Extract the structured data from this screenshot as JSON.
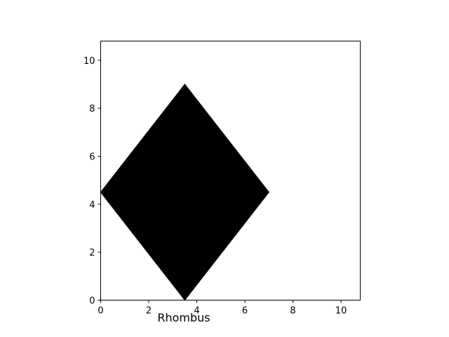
{
  "chart_data": {
    "type": "polygon",
    "title": "",
    "xlabel": "Rhombus",
    "ylabel": "",
    "xlim": [
      0,
      10.8
    ],
    "ylim": [
      0,
      10.8
    ],
    "grid": false,
    "legend": "none",
    "xticks": [
      0,
      2,
      4,
      6,
      8,
      10
    ],
    "yticks": [
      0,
      2,
      4,
      6,
      8,
      10
    ],
    "series": [
      {
        "shape": "rhombus",
        "color": "#000000",
        "points": [
          {
            "x": 3.5,
            "y": 0
          },
          {
            "x": 7,
            "y": 4.5
          },
          {
            "x": 3.5,
            "y": 9
          },
          {
            "x": 0,
            "y": 4.5
          }
        ]
      }
    ]
  }
}
